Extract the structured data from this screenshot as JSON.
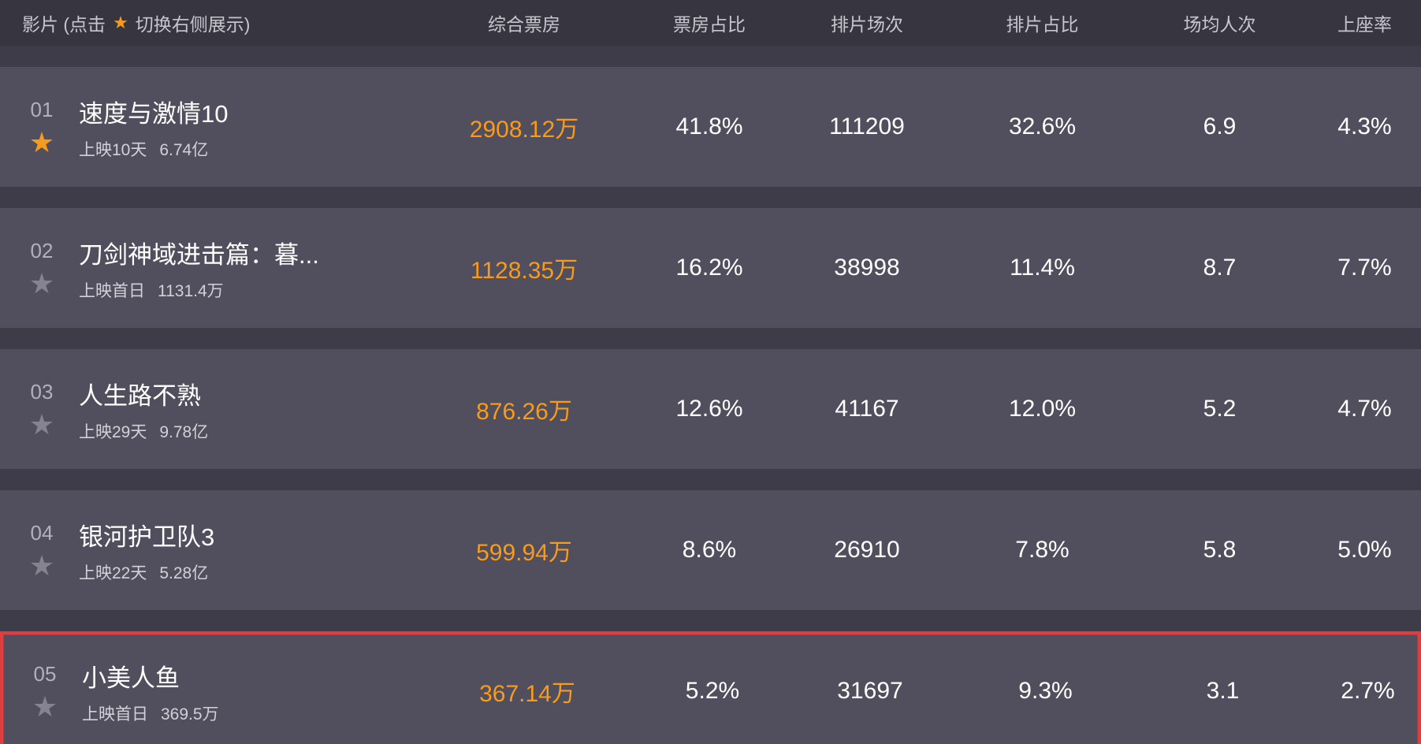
{
  "header": {
    "film_label_prefix": "影片 (点击",
    "film_label_suffix": "切换右侧展示)",
    "columns": [
      "综合票房",
      "票房占比",
      "排片场次",
      "排片占比",
      "场均人次",
      "上座率"
    ]
  },
  "icons": {
    "star": "★"
  },
  "colors": {
    "page-bg": "#3e3c49",
    "header-bg": "#373640",
    "row-bg": "#514f5e",
    "accent-orange": "#f79b1e",
    "highlight-red": "#e23c3e",
    "header-text": "#c7c6ce",
    "rank-text": "#b2b0ba",
    "subtitle-text": "#d2d1d7",
    "star-gray": "#85838f"
  },
  "rows": [
    {
      "rank": "01",
      "starred": true,
      "highlighted": false,
      "title": "速度与激情10",
      "release": "上映10天",
      "gross": "6.74亿",
      "box": "2908.12万",
      "box_share": "41.8%",
      "screenings": "111209",
      "screening_share": "32.6%",
      "avg_attendance": "6.9",
      "occupancy": "4.3%"
    },
    {
      "rank": "02",
      "starred": false,
      "highlighted": false,
      "title": "刀剑神域进击篇：暮...",
      "release": "上映首日",
      "gross": "1131.4万",
      "box": "1128.35万",
      "box_share": "16.2%",
      "screenings": "38998",
      "screening_share": "11.4%",
      "avg_attendance": "8.7",
      "occupancy": "7.7%"
    },
    {
      "rank": "03",
      "starred": false,
      "highlighted": false,
      "title": "人生路不熟",
      "release": "上映29天",
      "gross": "9.78亿",
      "box": "876.26万",
      "box_share": "12.6%",
      "screenings": "41167",
      "screening_share": "12.0%",
      "avg_attendance": "5.2",
      "occupancy": "4.7%"
    },
    {
      "rank": "04",
      "starred": false,
      "highlighted": false,
      "title": "银河护卫队3",
      "release": "上映22天",
      "gross": "5.28亿",
      "box": "599.94万",
      "box_share": "8.6%",
      "screenings": "26910",
      "screening_share": "7.8%",
      "avg_attendance": "5.8",
      "occupancy": "5.0%"
    },
    {
      "rank": "05",
      "starred": false,
      "highlighted": true,
      "title": "小美人鱼",
      "release": "上映首日",
      "gross": "369.5万",
      "box": "367.14万",
      "box_share": "5.2%",
      "screenings": "31697",
      "screening_share": "9.3%",
      "avg_attendance": "3.1",
      "occupancy": "2.7%"
    }
  ]
}
